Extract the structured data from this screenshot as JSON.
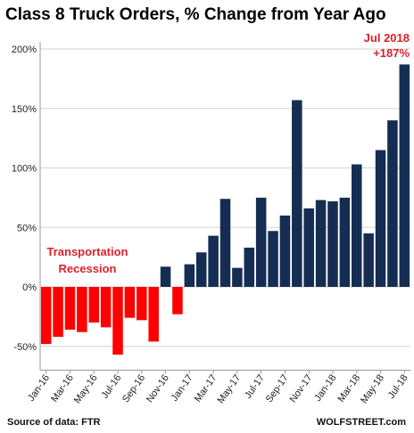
{
  "chart_data": {
    "type": "bar",
    "title": "Class 8 Truck Orders, % Change from Year Ago",
    "xlabel": "",
    "ylabel": "",
    "ylim": [
      -70,
      200
    ],
    "yticks": [
      -50,
      0,
      50,
      100,
      150,
      200
    ],
    "ytick_labels": [
      "-50%",
      "0%",
      "50%",
      "100%",
      "150%",
      "200%"
    ],
    "grid": true,
    "categories": [
      "Jan-16",
      "Feb-16",
      "Mar-16",
      "Apr-16",
      "May-16",
      "Jun-16",
      "Jul-16",
      "Aug-16",
      "Sep-16",
      "Oct-16",
      "Nov-16",
      "Dec-16",
      "Jan-17",
      "Feb-17",
      "Mar-17",
      "Apr-17",
      "May-17",
      "Jun-17",
      "Jul-17",
      "Aug-17",
      "Sep-17",
      "Oct-17",
      "Nov-17",
      "Dec-17",
      "Jan-18",
      "Feb-18",
      "Mar-18",
      "Apr-18",
      "May-18",
      "Jun-18",
      "Jul-18"
    ],
    "xtick_labels": [
      "Jan-16",
      "Mar-16",
      "May-16",
      "Jul-16",
      "Sep-16",
      "Nov-16",
      "Jan-17",
      "Mar-17",
      "May-17",
      "Jul-17",
      "Sep-17",
      "Nov-17",
      "Jan-18",
      "Mar-18",
      "May-18",
      "Jul-18"
    ],
    "values": [
      -48,
      -42,
      -36,
      -38,
      -30,
      -34,
      -57,
      -26,
      -28,
      -46,
      17,
      -23,
      19,
      29,
      43,
      74,
      16,
      33,
      75,
      47,
      60,
      157,
      66,
      73,
      72,
      75,
      103,
      45,
      115,
      140,
      187
    ],
    "colors": {
      "negative": "#ff0000",
      "positive": "#152d52"
    },
    "annotations": [
      {
        "lines": [
          "Transportation",
          "Recession"
        ],
        "color": "#d9232a"
      },
      {
        "lines": [
          "Jul 2018",
          "+187%"
        ],
        "color": "#d9232a"
      }
    ]
  },
  "footer": {
    "source": "Source of data: FTR",
    "brand": "WOLFSTREET.com"
  }
}
